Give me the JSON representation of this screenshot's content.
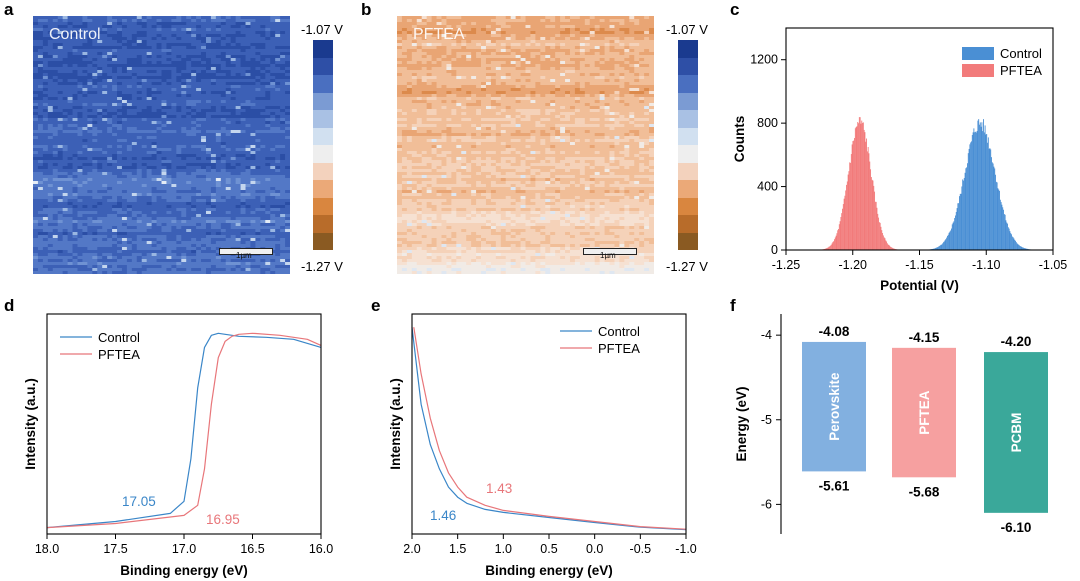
{
  "panels": {
    "a": {
      "letter": "a",
      "title": "Control",
      "colorbar_max": "-1.07 V",
      "colorbar_min": "-1.27 V",
      "scalebar": "1µm",
      "colors": [
        "#1a3a8f",
        "#2e4fa6",
        "#4a6fc0",
        "#7b9bd3",
        "#a9c1e4",
        "#d1e0f0",
        "#eeeeee",
        "#f3d2bd",
        "#eba978",
        "#d9863f",
        "#b86c2a",
        "#8a5a22"
      ]
    },
    "b": {
      "letter": "b",
      "title": "PFTEA",
      "colorbar_max": "-1.07 V",
      "colorbar_min": "-1.27 V",
      "scalebar": "1µm",
      "colors": [
        "#1a3a8f",
        "#2e4fa6",
        "#4a6fc0",
        "#7b9bd3",
        "#a9c1e4",
        "#d1e0f0",
        "#eeeeee",
        "#f3d2bd",
        "#eba978",
        "#d9863f",
        "#b86c2a",
        "#8a5a22"
      ]
    },
    "c": {
      "letter": "c"
    },
    "d": {
      "letter": "d"
    },
    "e": {
      "letter": "e"
    },
    "f": {
      "letter": "f"
    }
  },
  "chart_data": [
    {
      "id": "c",
      "type": "area",
      "xlabel": "Potential (V)",
      "ylabel": "Counts",
      "xlim": [
        -1.25,
        -1.05
      ],
      "ylim": [
        0,
        1400
      ],
      "xticks": [
        "-1.25",
        "-1.20",
        "-1.15",
        "-1.10",
        "-1.05"
      ],
      "xtick_values": [
        -1.25,
        -1.2,
        -1.15,
        -1.1,
        -1.05
      ],
      "yticks": [
        "0",
        "400",
        "800",
        "1200"
      ],
      "ytick_values": [
        0,
        400,
        800,
        1200
      ],
      "legend": "top-right",
      "series": [
        {
          "name": "Control",
          "color": "#4a8fd4",
          "center": -1.105,
          "sigma": 0.0115,
          "peak": 800
        },
        {
          "name": "PFTEA",
          "color": "#f27b7b",
          "center": -1.195,
          "sigma": 0.0085,
          "peak": 810
        }
      ]
    },
    {
      "id": "d",
      "type": "line",
      "xlabel": "Binding energy (eV)",
      "ylabel": "Intensity (a.u.)",
      "xlim": [
        18.0,
        16.0
      ],
      "xticks": [
        "18.0",
        "17.5",
        "17.0",
        "16.5",
        "16.0"
      ],
      "xtick_values": [
        18.0,
        17.5,
        17.0,
        16.5,
        16.0
      ],
      "ylim": [
        0,
        1.0
      ],
      "legend": "top-left",
      "series": [
        {
          "name": "Control",
          "color": "#3a86c8",
          "x": [
            18.0,
            17.5,
            17.1,
            17.0,
            16.95,
            16.9,
            16.85,
            16.8,
            16.75,
            16.7,
            16.6,
            16.4,
            16.2,
            16.0
          ],
          "y": [
            0.01,
            0.04,
            0.08,
            0.14,
            0.35,
            0.7,
            0.9,
            0.96,
            0.97,
            0.965,
            0.955,
            0.95,
            0.94,
            0.9
          ]
        },
        {
          "name": "PFTEA",
          "color": "#e8767a",
          "x": [
            18.0,
            17.5,
            17.0,
            16.9,
            16.85,
            16.8,
            16.75,
            16.7,
            16.65,
            16.6,
            16.5,
            16.3,
            16.1,
            16.0
          ],
          "y": [
            0.01,
            0.03,
            0.07,
            0.12,
            0.3,
            0.62,
            0.85,
            0.93,
            0.955,
            0.965,
            0.97,
            0.96,
            0.94,
            0.91
          ]
        }
      ],
      "annotations": [
        {
          "text": "17.05",
          "color": "#3a86c8"
        },
        {
          "text": "16.95",
          "color": "#e8767a"
        }
      ]
    },
    {
      "id": "e",
      "type": "line",
      "xlabel": "Binding energy (eV)",
      "ylabel": "Intensity (a.u.)",
      "xlim": [
        2.0,
        -1.0
      ],
      "xticks": [
        "2.0",
        "1.5",
        "1.0",
        "0.5",
        "0.0",
        "-0.5",
        "-1.0"
      ],
      "xtick_values": [
        2.0,
        1.5,
        1.0,
        0.5,
        0.0,
        -0.5,
        -1.0
      ],
      "ylim": [
        0,
        1.0
      ],
      "legend": "top-right",
      "series": [
        {
          "name": "Control",
          "color": "#3a86c8",
          "x": [
            2.0,
            1.9,
            1.8,
            1.7,
            1.6,
            1.5,
            1.4,
            1.2,
            1.0,
            0.5,
            0.0,
            -0.5,
            -1.0
          ],
          "y": [
            1.0,
            0.62,
            0.42,
            0.3,
            0.21,
            0.16,
            0.13,
            0.1,
            0.085,
            0.06,
            0.035,
            0.012,
            0.0
          ]
        },
        {
          "name": "PFTEA",
          "color": "#e8767a",
          "x": [
            1.98,
            1.9,
            1.8,
            1.7,
            1.6,
            1.5,
            1.4,
            1.2,
            1.0,
            0.5,
            0.0,
            -0.5,
            -1.0
          ],
          "y": [
            1.0,
            0.77,
            0.55,
            0.39,
            0.28,
            0.21,
            0.16,
            0.12,
            0.095,
            0.065,
            0.04,
            0.015,
            0.002
          ]
        }
      ],
      "annotations": [
        {
          "text": "1.46",
          "color": "#3a86c8"
        },
        {
          "text": "1.43",
          "color": "#e8767a"
        }
      ]
    },
    {
      "id": "f",
      "type": "bar",
      "ylabel": "Energy (eV)",
      "ylim": [
        -6.35,
        -3.75
      ],
      "yticks": [
        "-4",
        "-5",
        "-6"
      ],
      "ytick_values": [
        -4,
        -5,
        -6
      ],
      "bars": [
        {
          "name": "Perovskite",
          "top": -4.08,
          "bottom": -5.61,
          "top_label": "-4.08",
          "bottom_label": "-5.61",
          "color": "#82b0e0"
        },
        {
          "name": "PFTEA",
          "top": -4.15,
          "bottom": -5.68,
          "top_label": "-4.15",
          "bottom_label": "-5.68",
          "color": "#f6a0a0"
        },
        {
          "name": "PCBM",
          "top": -4.2,
          "bottom": -6.1,
          "top_label": "-4.20",
          "bottom_label": "-6.10",
          "color": "#3aa89a"
        }
      ]
    }
  ]
}
